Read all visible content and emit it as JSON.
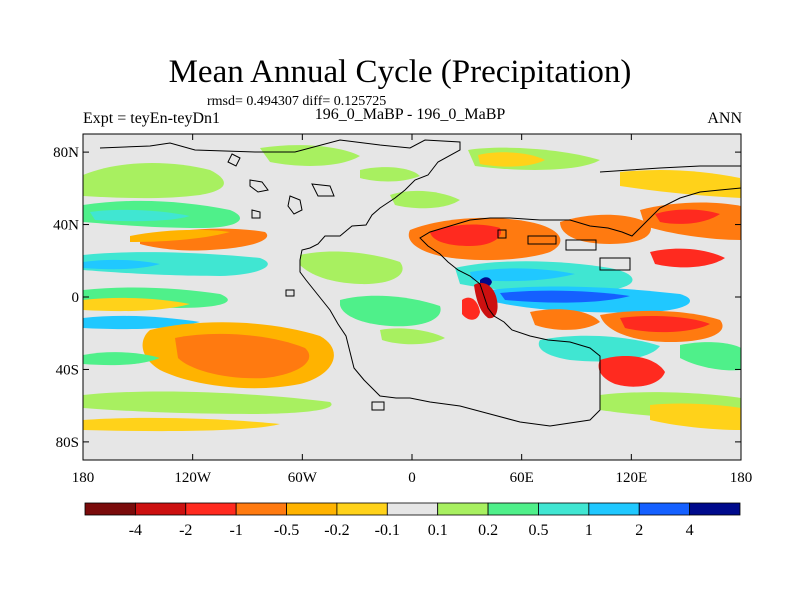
{
  "title": "Mean Annual Cycle (Precipitation)",
  "stats": "rmsd= 0.494307 diff= 0.125725",
  "experiment_label": "Expt = teyEn-teyDn1",
  "comparison_label": "196_0_MaBP - 196_0_MaBP",
  "season_label": "ANN",
  "y_axis": {
    "labels": [
      "80N",
      "40N",
      "0",
      "40S",
      "80S"
    ],
    "values": [
      80,
      40,
      0,
      -40,
      -80
    ]
  },
  "x_axis": {
    "labels": [
      "180",
      "120W",
      "60W",
      "0",
      "60E",
      "120E",
      "180"
    ],
    "values": [
      -180,
      -120,
      -60,
      0,
      60,
      120,
      180
    ]
  },
  "colorbar": {
    "colors": [
      "#7a0b0b",
      "#cc1010",
      "#ff2a1f",
      "#ff7a10",
      "#ffb300",
      "#ffd21a",
      "#e6e6e6",
      "#a8f060",
      "#4ff08a",
      "#40e6d2",
      "#20c8ff",
      "#1560ff",
      "#000a8c"
    ],
    "labels": [
      "-4",
      "-2",
      "-1",
      "-0.5",
      "-0.2",
      "-0.1",
      "0.1",
      "0.2",
      "0.5",
      "1",
      "2",
      "4"
    ]
  },
  "colors": {
    "background": "#e6e6e6",
    "coastline": "#000000"
  }
}
